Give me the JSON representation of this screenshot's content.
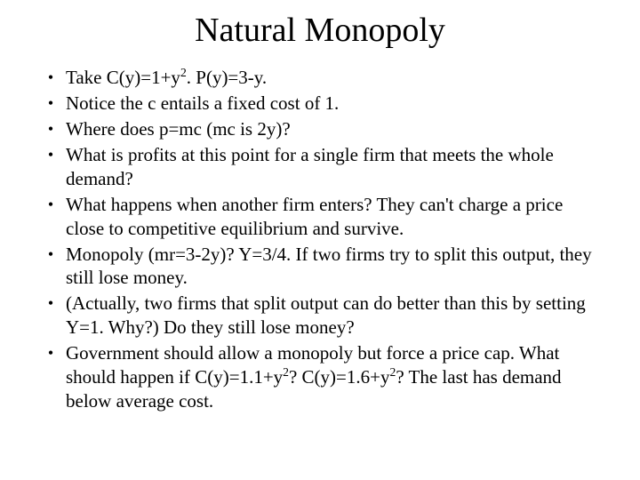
{
  "slide": {
    "title": "Natural Monopoly",
    "title_fontsize": 38,
    "body_fontsize": 21,
    "bullet_char": "•",
    "background_color": "#ffffff",
    "text_color": "#000000",
    "font_family": "Times New Roman",
    "bullets": [
      {
        "html": "Take C(y)=1+y<sup>2</sup>. P(y)=3-y."
      },
      {
        "html": "Notice the c entails a fixed cost of 1."
      },
      {
        "html": "Where does p=mc (mc is 2y)?"
      },
      {
        "html": "What is profits at this point for a single firm that meets the whole demand?"
      },
      {
        "html": "What happens when another firm enters? They can't charge a price close to competitive equilibrium and survive."
      },
      {
        "html": "Monopoly (mr=3-2y)? Y=3/4. If two firms try to split this output, they still lose money."
      },
      {
        "html": "(Actually, two firms that split output can do better than this by setting Y=1. Why?) Do they still lose money?"
      },
      {
        "html": "Government should allow a monopoly but force a price cap. What should happen if C(y)=1.1+y<sup>2</sup>? C(y)=1.6+y<sup>2</sup>? The last has demand below average cost."
      }
    ]
  }
}
